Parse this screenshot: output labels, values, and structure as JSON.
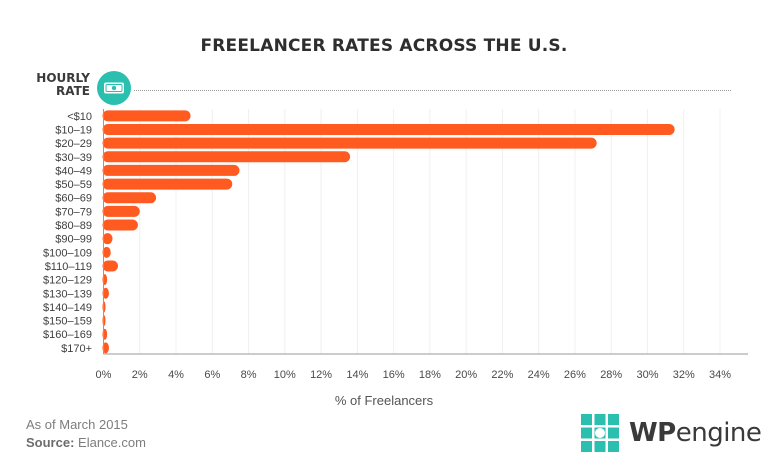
{
  "chart_data": {
    "type": "bar",
    "orientation": "horizontal",
    "title": "FREELANCER RATES ACROSS THE U.S.",
    "ylabel": "HOURLY RATE",
    "xlabel": "% of Freelancers",
    "categories": [
      "<$10",
      "$10–19",
      "$20–29",
      "$30–39",
      "$40–49",
      "$50–59",
      "$60–69",
      "$70–79",
      "$80–89",
      "$90–99",
      "$100–109",
      "$110–119",
      "$120–129",
      "$130–139",
      "$140–149",
      "$150–159",
      "$160–169",
      "$170+"
    ],
    "values": [
      4.8,
      31.5,
      27.2,
      13.6,
      7.5,
      7.1,
      2.9,
      2.0,
      1.9,
      0.5,
      0.4,
      0.8,
      0.2,
      0.3,
      0.05,
      0.1,
      0.2,
      0.3
    ],
    "xlim": [
      0,
      34
    ],
    "xticks": [
      "0%",
      "2%",
      "4%",
      "6%",
      "8%",
      "10%",
      "12%",
      "14%",
      "16%",
      "18%",
      "20%",
      "22%",
      "24%",
      "26%",
      "28%",
      "30%",
      "32%",
      "34%"
    ],
    "grid": true,
    "bar_color": "#ff5a1f"
  },
  "header": {
    "hourly_line1": "HOURLY",
    "hourly_line2": "RATE",
    "badge_icon": "dollar-bill-icon"
  },
  "footer": {
    "as_of": "As of March 2015",
    "source_label": "Source:",
    "source_value": "Elance.com"
  },
  "logo": {
    "wp": "WP",
    "engine": "engine",
    "icon": "wpengine-logo-icon",
    "color": "#2bbfb0"
  }
}
